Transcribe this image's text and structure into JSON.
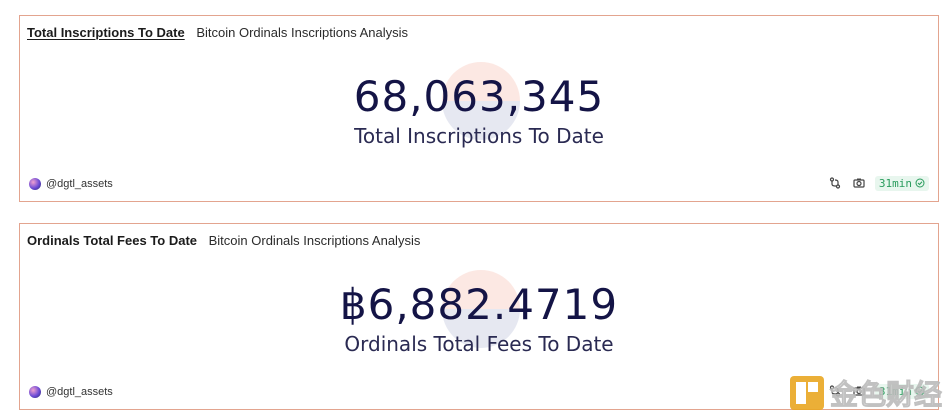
{
  "cards": [
    {
      "title": "Total Inscriptions To Date",
      "subtitle": "Bitcoin Ordinals Inscriptions Analysis",
      "value": "68,063,345",
      "label": "Total Inscriptions To Date",
      "author": "@dgtl_assets",
      "refresh": "31min"
    },
    {
      "title": "Ordinals Total Fees To Date",
      "subtitle": "Bitcoin Ordinals Inscriptions Analysis",
      "value": "฿6,882.4719",
      "label": "Ordinals Total Fees To Date",
      "author": "@dgtl_assets",
      "refresh": "31min"
    }
  ],
  "watermark": {
    "text": "金色财经"
  },
  "icons": {
    "fork": "fork-icon",
    "camera": "camera-icon",
    "check": "check-circle-icon",
    "avatar": "avatar"
  },
  "colors": {
    "card_border": "#e3a48f",
    "value_text": "#141446",
    "badge_bg": "#e8f6ee",
    "badge_text": "#2a9c5d",
    "watermark_gold": "#e9a722"
  }
}
